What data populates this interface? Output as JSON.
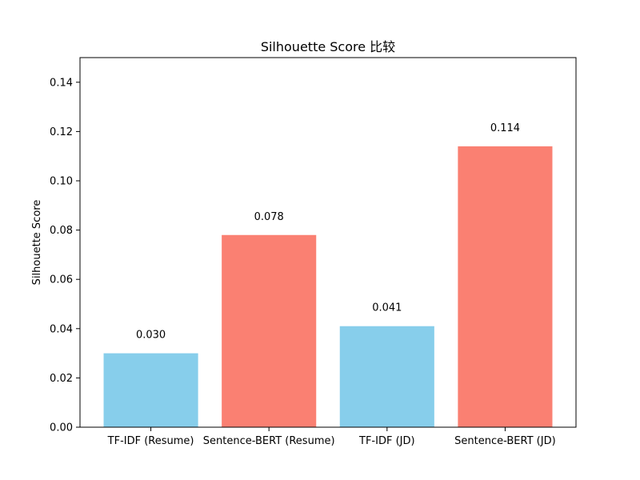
{
  "chart_data": {
    "type": "bar",
    "title": "Silhouette Score 比较",
    "xlabel": "",
    "ylabel": "Silhouette Score",
    "ylim": [
      0,
      0.15
    ],
    "yticks": [
      "0.00",
      "0.02",
      "0.04",
      "0.06",
      "0.08",
      "0.10",
      "0.12",
      "0.14"
    ],
    "grid": false,
    "categories": [
      "TF-IDF (Resume)",
      "Sentence-BERT (Resume)",
      "TF-IDF (JD)",
      "Sentence-BERT (JD)"
    ],
    "values": [
      0.03,
      0.078,
      0.041,
      0.114
    ],
    "value_labels": [
      "0.030",
      "0.078",
      "0.041",
      "0.114"
    ],
    "colors": [
      "#87CEEB",
      "#FA8072",
      "#87CEEB",
      "#FA8072"
    ]
  }
}
